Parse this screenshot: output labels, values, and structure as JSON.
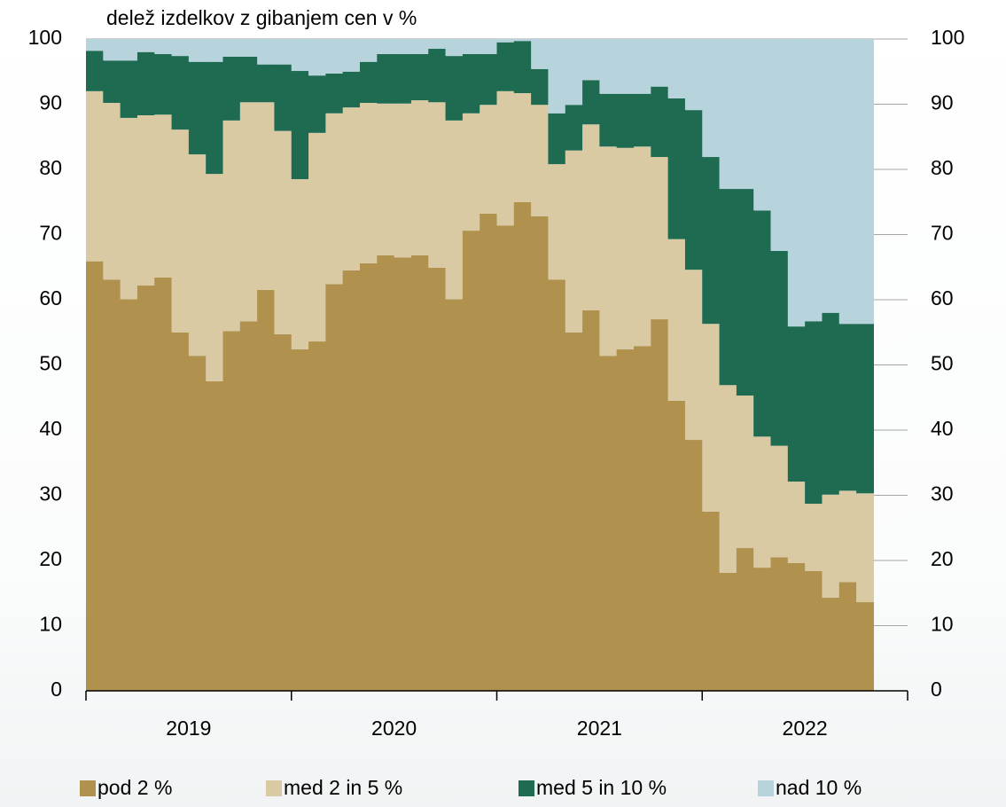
{
  "chart_data": {
    "type": "stacked_bar",
    "title": "delež izdelkov z gibanjem cen v %",
    "categories": [
      null,
      null,
      null,
      null,
      null,
      null,
      null,
      null,
      null,
      null,
      null,
      null,
      null,
      null,
      null,
      null,
      null,
      null,
      null,
      null,
      null,
      null,
      null,
      null,
      null,
      null,
      null,
      null,
      null,
      null,
      null,
      null,
      null,
      null,
      null,
      null,
      null,
      null,
      null,
      null,
      null,
      null,
      null,
      null,
      null,
      null
    ],
    "x_group_labels": [
      "2019",
      "2020",
      "2021",
      "2022"
    ],
    "series": [
      {
        "name": "pod 2 %",
        "color": "#b0924e",
        "values": [
          65.9,
          63.1,
          60.1,
          62.2,
          63.4,
          55.0,
          51.4,
          47.5,
          55.2,
          56.7,
          61.5,
          54.7,
          52.4,
          53.6,
          62.4,
          64.5,
          65.6,
          66.8,
          66.5,
          66.8,
          64.9,
          60.1,
          70.6,
          73.2,
          71.4,
          75.0,
          72.8,
          63.1,
          55.0,
          58.4,
          51.4,
          52.4,
          52.9,
          57.0,
          44.5,
          38.5,
          27.5,
          18.1,
          21.9,
          18.9,
          20.5,
          19.6,
          18.4,
          14.3,
          16.7,
          13.6
        ]
      },
      {
        "name": "med 2 in 5 %",
        "color": "#d9caa4",
        "values": [
          26.1,
          27.1,
          27.8,
          26.1,
          25.0,
          31.1,
          30.9,
          31.8,
          32.3,
          33.6,
          28.8,
          31.2,
          26.1,
          32.0,
          26.2,
          25.0,
          24.6,
          23.3,
          23.6,
          23.8,
          25.4,
          27.4,
          18.0,
          16.7,
          20.6,
          16.7,
          17.1,
          17.7,
          27.9,
          28.5,
          32.1,
          30.9,
          30.6,
          24.9,
          24.8,
          26.1,
          28.8,
          28.8,
          23.4,
          20.1,
          17.1,
          12.5,
          10.3,
          15.8,
          14.0,
          16.7
        ]
      },
      {
        "name": "med 5 in 10 %",
        "color": "#1f6b52",
        "values": [
          6.2,
          6.5,
          8.8,
          9.7,
          9.3,
          11.3,
          14.2,
          17.2,
          9.8,
          7.0,
          5.8,
          10.2,
          16.6,
          8.8,
          6.1,
          5.5,
          6.3,
          7.6,
          7.6,
          7.1,
          8.2,
          9.9,
          9.1,
          7.8,
          7.5,
          8.0,
          5.5,
          7.8,
          7.0,
          6.8,
          8.1,
          8.3,
          8.1,
          10.8,
          21.6,
          24.5,
          25.6,
          30.1,
          31.7,
          34.7,
          29.9,
          23.8,
          28.0,
          27.9,
          25.6,
          26.0
        ]
      },
      {
        "name": "nad 10 %",
        "color": "#b7d4dd",
        "values": [
          1.8,
          3.3,
          3.3,
          2.0,
          2.3,
          2.6,
          3.5,
          3.5,
          2.7,
          2.7,
          3.9,
          3.9,
          4.9,
          5.6,
          5.3,
          5.0,
          3.5,
          2.3,
          2.3,
          2.3,
          1.5,
          2.6,
          2.3,
          2.3,
          0.5,
          0.3,
          4.6,
          11.4,
          10.1,
          6.3,
          8.4,
          8.4,
          8.4,
          7.3,
          9.1,
          10.9,
          18.1,
          23.0,
          23.0,
          26.3,
          32.5,
          44.1,
          43.3,
          42.0,
          43.7,
          43.7
        ]
      }
    ],
    "ylim": [
      0,
      100
    ],
    "yticks": [
      0,
      10,
      20,
      30,
      40,
      50,
      60,
      70,
      80,
      90,
      100
    ],
    "y2lim": [
      0,
      100
    ],
    "y2ticks": [
      0,
      10,
      20,
      30,
      40,
      50,
      60,
      70,
      80,
      90,
      100
    ],
    "grid": true,
    "legend": "bottom"
  }
}
